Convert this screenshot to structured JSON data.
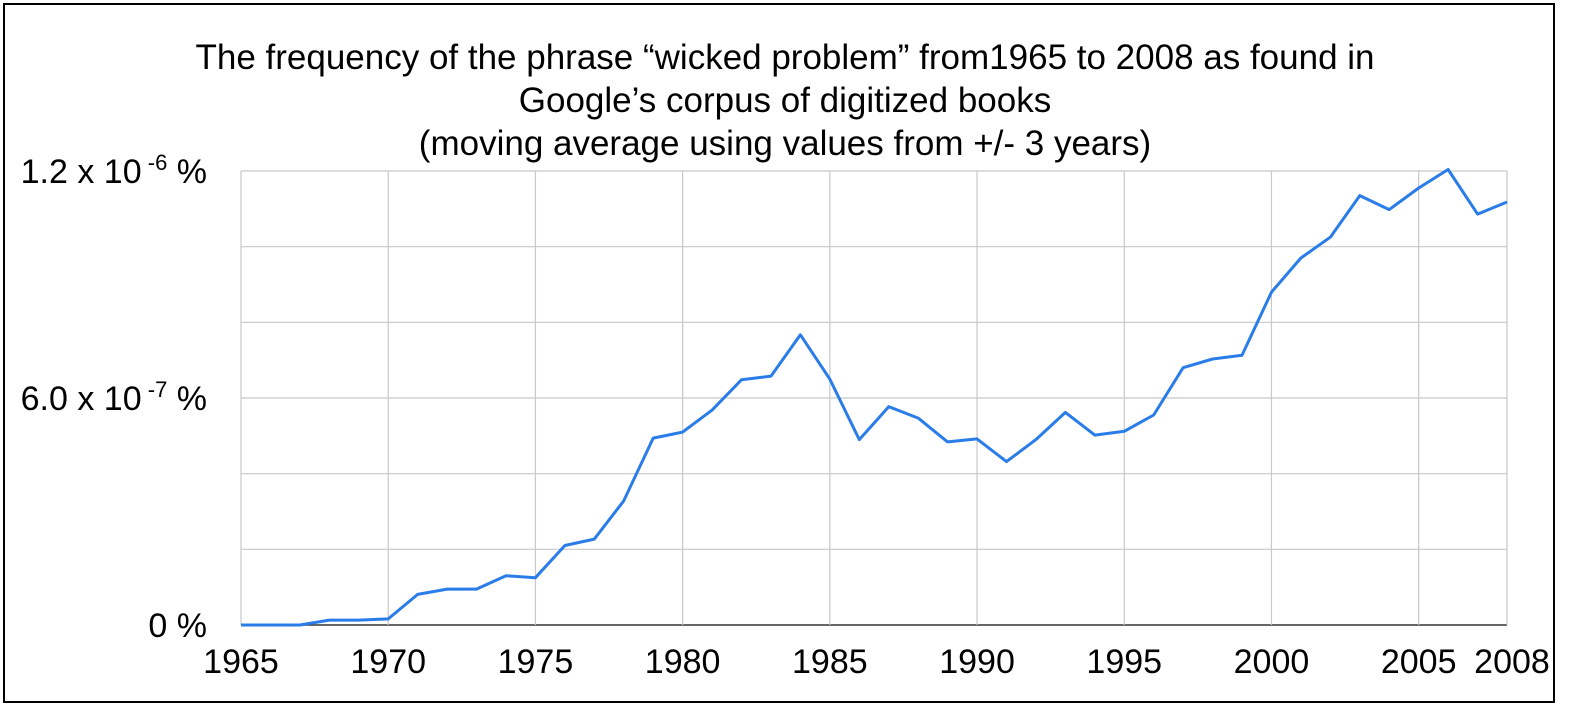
{
  "chart_data": {
    "type": "line",
    "title": [
      "The frequency of the phrase “wicked problem” from1965 to 2008 as found in",
      "Google’s corpus of digitized books",
      "(moving average using values from +/- 3 years)"
    ],
    "xlabel": "",
    "ylabel": "",
    "xlim": [
      1965,
      2008
    ],
    "ylim": [
      0,
      1.2e-06
    ],
    "y_unit": "%",
    "x_ticks": [
      "1965",
      "1970",
      "1975",
      "1980",
      "1985",
      "1990",
      "1995",
      "2000",
      "2005",
      "2008"
    ],
    "y_ticks": [
      {
        "value": 0,
        "base": "0",
        "exp": "",
        "unit": " %"
      },
      {
        "value": 6e-07,
        "base": "6.0 x 10",
        "exp": "-7",
        "unit": "%"
      },
      {
        "value": 1.2e-06,
        "base": "1.2 x 10",
        "exp": "-6",
        "unit": "%"
      }
    ],
    "grid": true,
    "series_color": "#2a7de8",
    "x": [
      1965,
      1966,
      1967,
      1968,
      1969,
      1970,
      1971,
      1972,
      1973,
      1974,
      1975,
      1976,
      1977,
      1978,
      1979,
      1980,
      1981,
      1982,
      1983,
      1984,
      1985,
      1986,
      1987,
      1988,
      1989,
      1990,
      1991,
      1992,
      1993,
      1994,
      1995,
      1996,
      1997,
      1998,
      1999,
      2000,
      2001,
      2002,
      2003,
      2004,
      2005,
      2006,
      2007,
      2008
    ],
    "values": [
      0,
      0,
      0,
      1.3e-08,
      1.3e-08,
      1.6e-08,
      8.1e-08,
      9.5e-08,
      9.5e-08,
      1.3e-07,
      1.25e-07,
      2.1e-07,
      2.27e-07,
      3.28e-07,
      4.94e-07,
      5.1e-07,
      5.68e-07,
      6.48e-07,
      6.58e-07,
      7.67e-07,
      6.5e-07,
      4.9e-07,
      5.77e-07,
      5.47e-07,
      4.84e-07,
      4.92e-07,
      4.32e-07,
      4.9e-07,
      5.62e-07,
      5.02e-07,
      5.12e-07,
      5.55e-07,
      6.8e-07,
      7.03e-07,
      7.13e-07,
      8.8e-07,
      9.7e-07,
      1.025e-06,
      1.135e-06,
      1.098e-06,
      1.155e-06,
      1.204e-06,
      1.086e-06,
      1.118e-06
    ]
  }
}
